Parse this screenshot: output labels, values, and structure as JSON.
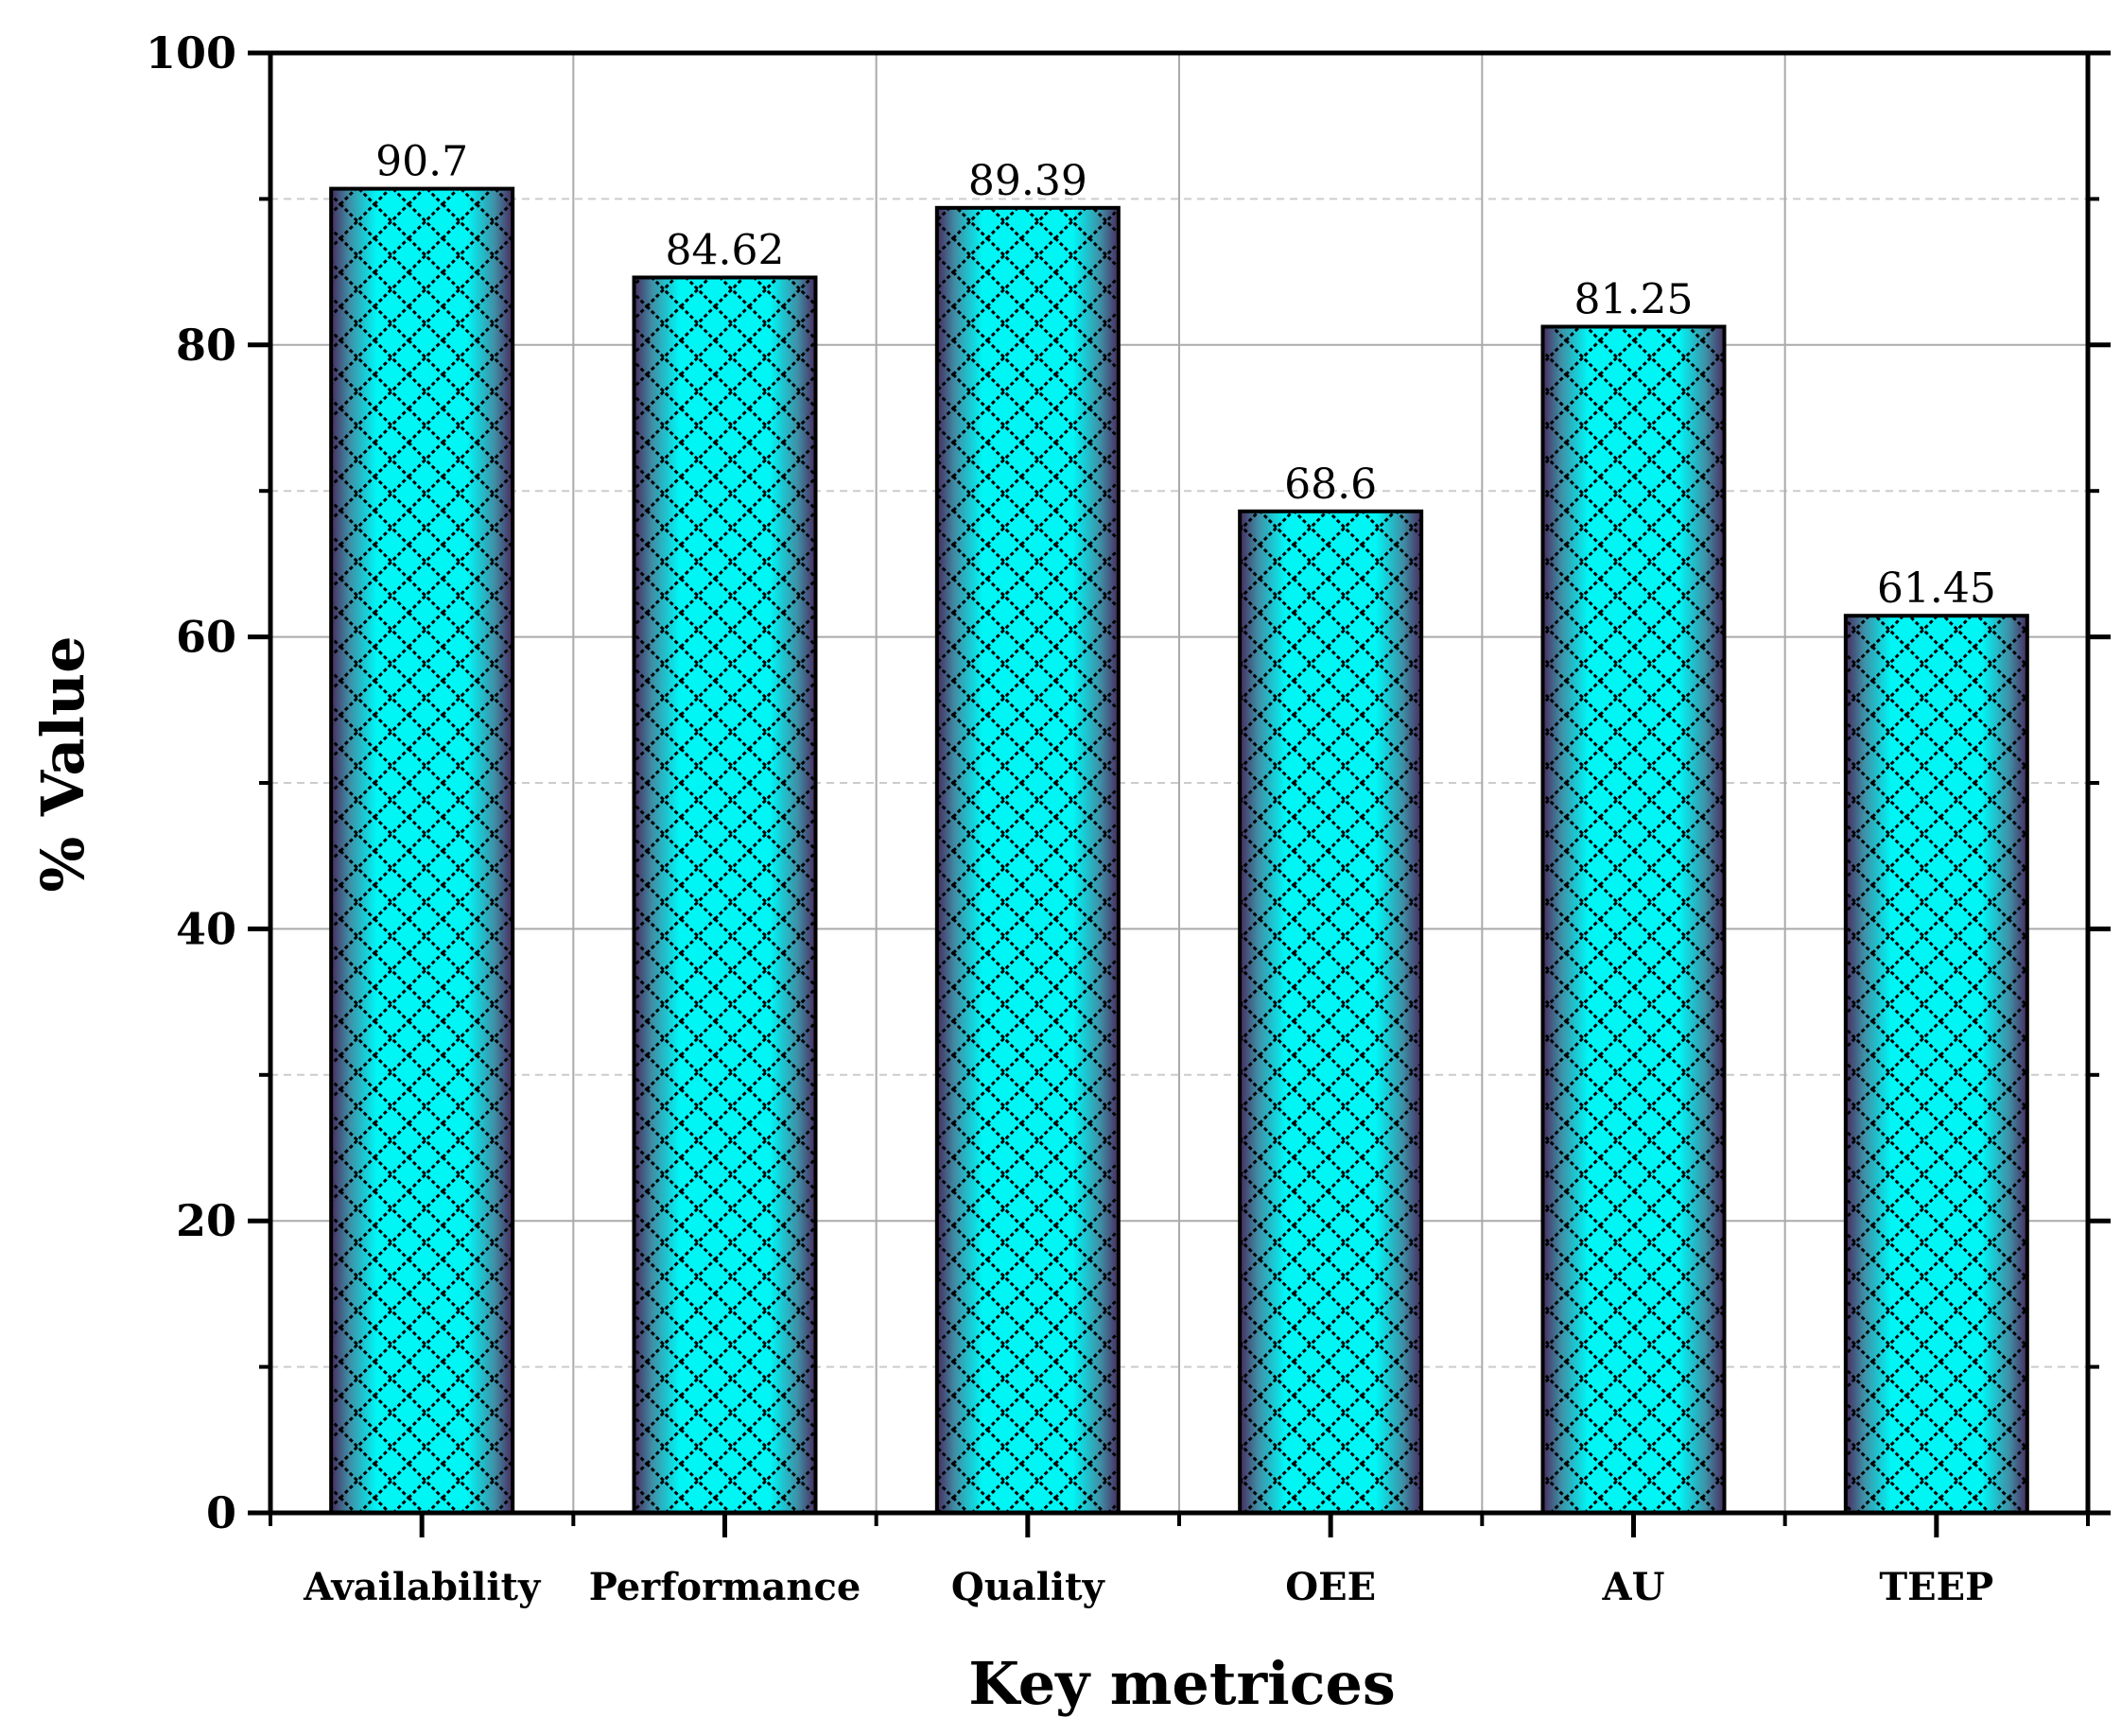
{
  "chart_data": {
    "type": "bar",
    "title": "",
    "xlabel": "Key metrices",
    "ylabel": "% Value",
    "categories": [
      "Availability",
      "Performance",
      "Quality",
      "OEE",
      "AU",
      "TEEP"
    ],
    "values": [
      90.7,
      84.62,
      89.39,
      68.6,
      81.25,
      61.45
    ],
    "value_labels": [
      "90.7",
      "84.62",
      "89.39",
      "68.6",
      "81.25",
      "61.45"
    ],
    "ylim": [
      0,
      100
    ],
    "yticks": [
      0,
      20,
      40,
      60,
      80,
      100
    ],
    "ytick_labels": [
      "0",
      "20",
      "40",
      "60",
      "80",
      "100"
    ],
    "minor_grid": [
      10,
      30,
      50,
      70,
      90
    ],
    "grid": true,
    "bar_fill": "cyan gradient with black crosshatch",
    "colors": {
      "bar_center": "#00f5f5",
      "bar_edge": "#4a2a5e",
      "hatch": "#000000",
      "grid_major": "#aaaaaa",
      "grid_minor": "#cccccc"
    }
  }
}
